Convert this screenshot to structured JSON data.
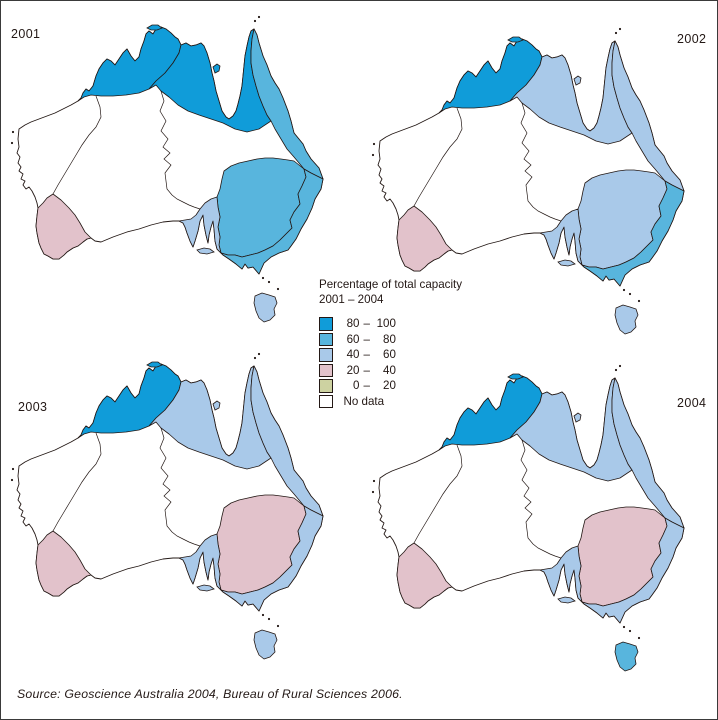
{
  "legend": {
    "title_line1": "Percentage of total capacity",
    "title_line2": "2001 – 2004",
    "dash": "–",
    "items": [
      {
        "key": "c80_100",
        "from": "80",
        "to": "100"
      },
      {
        "key": "c60_80",
        "from": "60",
        "to": "80"
      },
      {
        "key": "c40_60",
        "from": "40",
        "to": "60"
      },
      {
        "key": "c20_40",
        "from": "20",
        "to": "40"
      },
      {
        "key": "c0_20",
        "from": "0",
        "to": "20"
      },
      {
        "key": "no_data",
        "label": "No data"
      }
    ]
  },
  "colors": {
    "c80_100": "#109cd9",
    "c60_80": "#58b5dd",
    "c40_60": "#a9c9e9",
    "c20_40": "#e2c2cb",
    "c0_20": "#cdd2a1",
    "no_data": "#ffffff",
    "outline": "#231815"
  },
  "source_note": "Source: Geoscience Australia 2004, Bureau of Rural Sciences 2006.",
  "map_data": {
    "type": "choropleth-map-series",
    "measure": "Percentage of total capacity",
    "period": "2001 – 2004",
    "legend_categories": [
      "80 – 100",
      "60 – 80",
      "40 – 60",
      "20 – 40",
      "0 – 20",
      "No data"
    ],
    "panels": [
      {
        "year": "2001",
        "values": {
          "timor_sea": "80 – 100",
          "gulf_of_carpentaria": "80 – 100",
          "north_east_coast": "60 – 80",
          "murray_darling": "60 – 80",
          "south_east_coast": "60 – 80",
          "sa_gulf": "40 – 60",
          "south_west_coast": "20 – 40",
          "tasmania": "40 – 60",
          "western_plateau": "No data",
          "lake_eyre_basin": "No data",
          "indian_ocean_coast": "No data"
        }
      },
      {
        "year": "2002",
        "values": {
          "timor_sea": "80 – 100",
          "gulf_of_carpentaria": "40 – 60",
          "north_east_coast": "40 – 60",
          "murray_darling": "40 – 60",
          "south_east_coast": "60 – 80",
          "sa_gulf": "40 – 60",
          "south_west_coast": "20 – 40",
          "tasmania": "40 – 60",
          "western_plateau": "No data",
          "lake_eyre_basin": "No data",
          "indian_ocean_coast": "No data"
        }
      },
      {
        "year": "2003",
        "values": {
          "timor_sea": "80 – 100",
          "gulf_of_carpentaria": "40 – 60",
          "north_east_coast": "40 – 60",
          "murray_darling": "20 – 40",
          "south_east_coast": "40 – 60",
          "sa_gulf": "40 – 60",
          "south_west_coast": "20 – 40",
          "tasmania": "40 – 60",
          "western_plateau": "No data",
          "lake_eyre_basin": "No data",
          "indian_ocean_coast": "No data"
        }
      },
      {
        "year": "2004",
        "values": {
          "timor_sea": "80 – 100",
          "gulf_of_carpentaria": "40 – 60",
          "north_east_coast": "40 – 60",
          "murray_darling": "20 – 40",
          "south_east_coast": "40 – 60",
          "sa_gulf": "40 – 60",
          "south_west_coast": "20 – 40",
          "tasmania": "60 – 80",
          "western_plateau": "No data",
          "lake_eyre_basin": "No data",
          "indian_ocean_coast": "No data"
        }
      }
    ]
  }
}
